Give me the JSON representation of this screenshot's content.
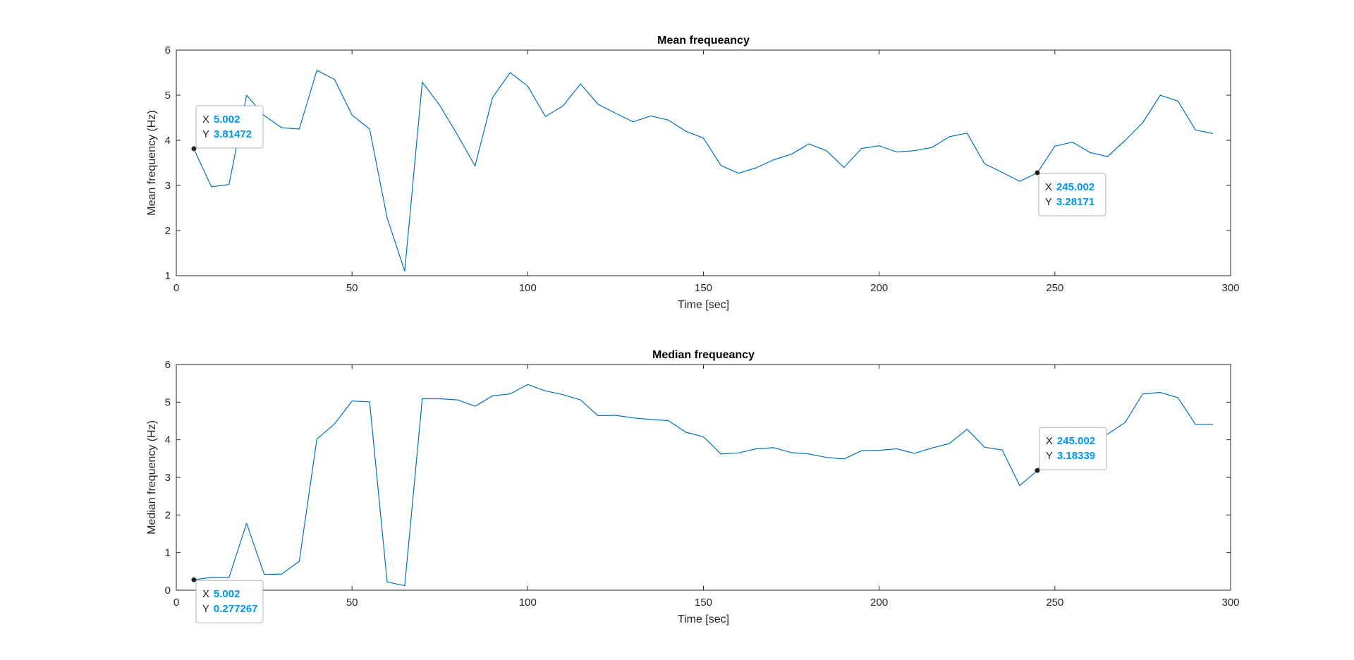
{
  "colors": {
    "line": "#0072BD",
    "datatip_value": "#0096F0",
    "axes": "#262626",
    "marker": "#1a1a1a"
  },
  "chart_data": [
    {
      "type": "line",
      "title": "Mean frequeancy",
      "xlabel": "Time [sec]",
      "ylabel": "Mean frequency (Hz)",
      "xlim": [
        0,
        300
      ],
      "ylim": [
        1,
        6
      ],
      "xticks": [
        "0",
        "50",
        "100",
        "150",
        "200",
        "250",
        "300"
      ],
      "yticks": [
        "1",
        "2",
        "3",
        "4",
        "5",
        "6"
      ],
      "grid": false,
      "series": [
        {
          "x": [
            5,
            10,
            15,
            20,
            25,
            30,
            35,
            40,
            45,
            50,
            55,
            60,
            65,
            70,
            75,
            80,
            85,
            90,
            95,
            100,
            105,
            110,
            115,
            120,
            125,
            130,
            135,
            140,
            145,
            150,
            155,
            160,
            165,
            170,
            175,
            180,
            185,
            190,
            195,
            200,
            205,
            210,
            215,
            220,
            225,
            230,
            235,
            240,
            245,
            250,
            255,
            260,
            265,
            270,
            275,
            280,
            285,
            290,
            295
          ],
          "y": [
            3.81,
            2.97,
            3.02,
            5.0,
            4.55,
            4.28,
            4.25,
            5.55,
            5.35,
            4.56,
            4.25,
            2.28,
            1.1,
            5.29,
            4.77,
            4.12,
            3.43,
            4.95,
            5.5,
            5.2,
            4.53,
            4.76,
            5.25,
            4.8,
            4.6,
            4.41,
            4.54,
            4.45,
            4.2,
            4.05,
            3.44,
            3.27,
            3.39,
            3.57,
            3.69,
            3.92,
            3.77,
            3.4,
            3.82,
            3.88,
            3.74,
            3.77,
            3.84,
            4.08,
            4.16,
            3.48,
            3.29,
            3.09,
            3.28,
            3.87,
            3.96,
            3.73,
            3.64,
            4.0,
            4.39,
            5.0,
            4.87,
            4.23,
            4.15
          ]
        }
      ],
      "datatips": [
        {
          "x_key": "X",
          "x_value": "5.002",
          "y_key": "Y",
          "y_value": "3.81472",
          "x": 5.002,
          "y": 3.81472
        },
        {
          "x_key": "X",
          "x_value": "245.002",
          "y_key": "Y",
          "y_value": "3.28171",
          "x": 245.002,
          "y": 3.28171
        }
      ]
    },
    {
      "type": "line",
      "title": "Median frequeancy",
      "xlabel": "Time [sec]",
      "ylabel": "Median frequency (Hz)",
      "xlim": [
        0,
        300
      ],
      "ylim": [
        0,
        6
      ],
      "xticks": [
        "0",
        "50",
        "100",
        "150",
        "200",
        "250",
        "300"
      ],
      "yticks": [
        "0",
        "1",
        "2",
        "3",
        "4",
        "5",
        "6"
      ],
      "grid": false,
      "series": [
        {
          "x": [
            5,
            10,
            15,
            20,
            25,
            30,
            35,
            40,
            45,
            50,
            55,
            60,
            65,
            70,
            75,
            80,
            85,
            90,
            95,
            100,
            105,
            110,
            115,
            120,
            125,
            130,
            135,
            140,
            145,
            150,
            155,
            160,
            165,
            170,
            175,
            180,
            185,
            190,
            195,
            200,
            205,
            210,
            215,
            220,
            225,
            230,
            235,
            240,
            245,
            250,
            255,
            260,
            265,
            270,
            275,
            280,
            285,
            290,
            295
          ],
          "y": [
            0.28,
            0.34,
            0.34,
            1.78,
            0.42,
            0.43,
            0.77,
            4.02,
            4.42,
            5.03,
            5.01,
            0.22,
            0.12,
            5.09,
            5.09,
            5.06,
            4.89,
            5.17,
            5.22,
            5.47,
            5.3,
            5.2,
            5.06,
            4.64,
            4.65,
            4.58,
            4.54,
            4.51,
            4.2,
            4.08,
            3.62,
            3.65,
            3.76,
            3.79,
            3.66,
            3.62,
            3.53,
            3.49,
            3.71,
            3.72,
            3.76,
            3.64,
            3.78,
            3.9,
            4.28,
            3.8,
            3.73,
            2.78,
            3.18,
            3.9,
            4.05,
            4.05,
            4.15,
            4.46,
            5.22,
            5.26,
            5.12,
            4.41,
            4.41
          ]
        }
      ],
      "datatips": [
        {
          "x_key": "X",
          "x_value": "5.002",
          "y_key": "Y",
          "y_value": "0.277267",
          "x": 5.002,
          "y": 0.277267
        },
        {
          "x_key": "X",
          "x_value": "245.002",
          "y_key": "Y",
          "y_value": "3.18339",
          "x": 245.002,
          "y": 3.18339
        }
      ]
    }
  ]
}
